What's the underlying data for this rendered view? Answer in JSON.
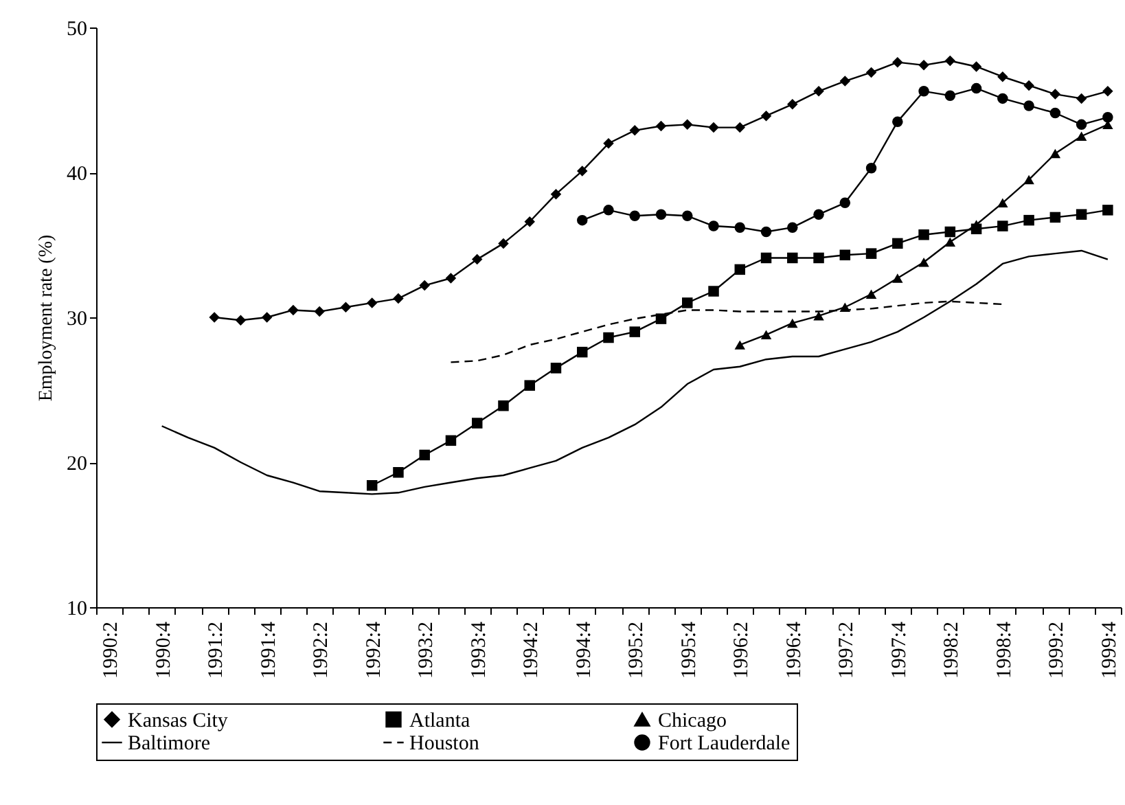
{
  "chart_data": {
    "type": "line",
    "ylabel": "Employment rate (%)",
    "ylim": [
      10,
      50
    ],
    "yticks": [
      10,
      20,
      30,
      40,
      50
    ],
    "legend": "bottom",
    "categories": [
      "1990:2",
      null,
      "1990:4",
      null,
      "1991:2",
      null,
      "1991:4",
      null,
      "1992:2",
      null,
      "1992:4",
      null,
      "1993:2",
      null,
      "1993:4",
      null,
      "1994:2",
      null,
      "1994:4",
      null,
      "1995:2",
      null,
      "1995:4",
      null,
      "1996:2",
      null,
      "1996:4",
      null,
      "1997:2",
      null,
      "1997:4",
      null,
      "1998:2",
      null,
      "1998:4",
      null,
      "1999:2",
      null,
      "1999:4"
    ],
    "series": [
      {
        "name": "Kansas City",
        "color": "#000000",
        "marker": "diamond",
        "line_style": "solid",
        "values": [
          null,
          null,
          null,
          null,
          30.0,
          29.8,
          30.0,
          30.5,
          30.4,
          30.7,
          31.0,
          31.3,
          32.2,
          32.7,
          34.0,
          35.1,
          36.6,
          38.5,
          40.1,
          42.0,
          42.9,
          43.2,
          43.3,
          43.1,
          43.1,
          43.9,
          44.7,
          45.6,
          46.3,
          46.9,
          47.6,
          47.4,
          47.7,
          47.3,
          46.6,
          46.0,
          45.4,
          45.1,
          45.6
        ]
      },
      {
        "name": "Atlanta",
        "color": "#000000",
        "marker": "square",
        "line_style": "solid",
        "values": [
          null,
          null,
          null,
          null,
          null,
          null,
          null,
          null,
          null,
          null,
          18.4,
          19.3,
          20.5,
          21.5,
          22.7,
          23.9,
          25.3,
          26.5,
          27.6,
          28.6,
          29.0,
          29.9,
          31.0,
          31.8,
          33.3,
          34.1,
          34.1,
          34.1,
          34.3,
          34.4,
          35.1,
          35.7,
          35.9,
          36.1,
          36.3,
          36.7,
          36.9,
          37.1,
          37.4
        ]
      },
      {
        "name": "Chicago",
        "color": "#000000",
        "marker": "triangle",
        "line_style": "solid",
        "values": [
          null,
          null,
          null,
          null,
          null,
          null,
          null,
          null,
          null,
          null,
          null,
          null,
          null,
          null,
          null,
          null,
          null,
          null,
          null,
          null,
          null,
          null,
          null,
          null,
          28.1,
          28.8,
          29.6,
          30.1,
          30.7,
          31.6,
          32.7,
          33.8,
          35.2,
          36.4,
          37.9,
          39.5,
          41.3,
          42.5,
          43.3
        ]
      },
      {
        "name": "Baltimore",
        "color": "#000000",
        "marker": "none",
        "line_style": "solid",
        "values": [
          null,
          null,
          22.5,
          21.7,
          21.0,
          20.0,
          19.1,
          18.6,
          18.0,
          17.9,
          17.8,
          17.9,
          18.3,
          18.6,
          18.9,
          19.1,
          19.6,
          20.1,
          21.0,
          21.7,
          22.6,
          23.8,
          25.4,
          26.4,
          26.6,
          27.1,
          27.3,
          27.3,
          27.8,
          28.3,
          29.0,
          30.0,
          31.1,
          32.3,
          33.7,
          34.2,
          34.4,
          34.6,
          34.0
        ]
      },
      {
        "name": "Houston",
        "color": "#000000",
        "marker": "none",
        "line_style": "dashed",
        "values": [
          null,
          null,
          null,
          null,
          null,
          null,
          null,
          null,
          null,
          null,
          null,
          null,
          null,
          26.9,
          27.0,
          27.4,
          28.1,
          28.5,
          29.0,
          29.5,
          29.9,
          30.2,
          30.5,
          30.5,
          30.4,
          30.4,
          30.4,
          30.4,
          30.5,
          30.6,
          30.8,
          31.0,
          31.1,
          31.0,
          30.9,
          null,
          null,
          null,
          null
        ]
      },
      {
        "name": "Fort Lauderdale",
        "color": "#000000",
        "marker": "circle",
        "line_style": "solid",
        "values": [
          null,
          null,
          null,
          null,
          null,
          null,
          null,
          null,
          null,
          null,
          null,
          null,
          null,
          null,
          null,
          null,
          null,
          null,
          36.7,
          37.4,
          37.0,
          37.1,
          37.0,
          36.3,
          36.2,
          35.9,
          36.2,
          37.1,
          37.9,
          40.3,
          43.5,
          45.6,
          45.3,
          45.8,
          45.1,
          44.6,
          44.1,
          43.3,
          43.8
        ]
      }
    ]
  }
}
